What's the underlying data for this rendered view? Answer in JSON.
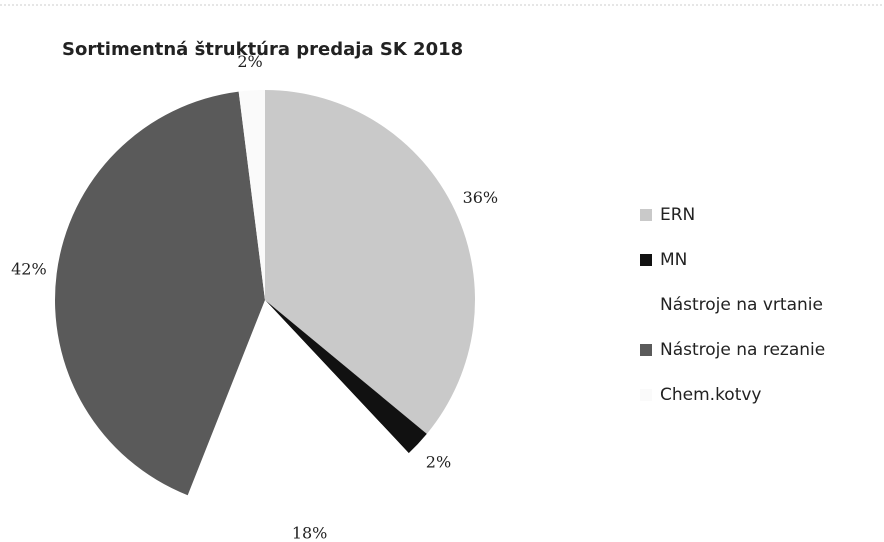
{
  "chart_data": {
    "type": "pie",
    "title": "Sortimentná štruktúra predaja SK 2018",
    "categories": [
      "ERN",
      "MN",
      "Nástroje na vrtanie",
      "Nástroje na rezanie",
      "Chem.kotvy"
    ],
    "values": [
      36,
      2,
      18,
      42,
      2
    ],
    "value_labels": [
      "36%",
      "2%",
      "18%",
      "42%",
      "2%"
    ],
    "colors": [
      "#c9c9c9",
      "#111111",
      "#ffffff",
      "#5a5a5a",
      "#fafafa"
    ],
    "legend": "right"
  }
}
